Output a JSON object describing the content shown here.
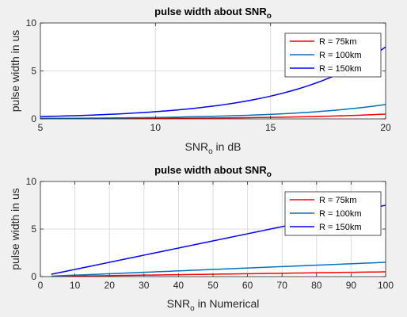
{
  "figure": {
    "background": "#f0f0f0",
    "axes_background": "#ffffff"
  },
  "chart_data": [
    {
      "type": "line",
      "title": "pulse width about SNR",
      "title_subscript": "o",
      "xlabel": "SNR",
      "xlabel_subscript": "o",
      "xlabel_suffix": " in dB",
      "ylabel": "pulse width in us",
      "xlim": [
        5,
        20
      ],
      "ylim": [
        0,
        10
      ],
      "xticks": [
        5,
        10,
        15,
        20
      ],
      "yticks": [
        0,
        5,
        10
      ],
      "grid": true,
      "legend_position": "top-right",
      "x_scale_note": "dB",
      "series": [
        {
          "name": "R = 75km",
          "color": "#ff0000",
          "x": [
            5,
            7.5,
            10,
            12.5,
            15,
            17.5,
            20
          ],
          "y": [
            0.016,
            0.028,
            0.05,
            0.089,
            0.158,
            0.281,
            0.5
          ]
        },
        {
          "name": "R = 100km",
          "color": "#0072bd",
          "x": [
            5,
            7.5,
            10,
            12.5,
            15,
            17.5,
            20
          ],
          "y": [
            0.047,
            0.084,
            0.15,
            0.27,
            0.47,
            0.84,
            1.5
          ]
        },
        {
          "name": "R = 150km",
          "color": "#0000ff",
          "x": [
            5,
            7.5,
            10,
            12.5,
            15,
            17.5,
            20
          ],
          "y": [
            0.24,
            0.42,
            0.75,
            1.33,
            2.37,
            4.22,
            7.5
          ]
        }
      ]
    },
    {
      "type": "line",
      "title": "pulse width about SNR",
      "title_subscript": "o",
      "xlabel": "SNR",
      "xlabel_subscript": "o",
      "xlabel_suffix": " in Numerical",
      "ylabel": "pulse width in us",
      "xlim": [
        0,
        100
      ],
      "ylim": [
        0,
        10
      ],
      "xticks": [
        0,
        10,
        20,
        30,
        40,
        50,
        60,
        70,
        80,
        90,
        100
      ],
      "yticks": [
        0,
        5,
        10
      ],
      "grid": true,
      "legend_position": "top-right",
      "series": [
        {
          "name": "R = 75km",
          "color": "#ff0000",
          "x": [
            3.16,
            100
          ],
          "y": [
            0.016,
            0.5
          ]
        },
        {
          "name": "R = 100km",
          "color": "#0072bd",
          "x": [
            3.16,
            100
          ],
          "y": [
            0.047,
            1.5
          ]
        },
        {
          "name": "R = 150km",
          "color": "#0000ff",
          "x": [
            3.16,
            100
          ],
          "y": [
            0.24,
            7.5
          ]
        }
      ]
    }
  ]
}
